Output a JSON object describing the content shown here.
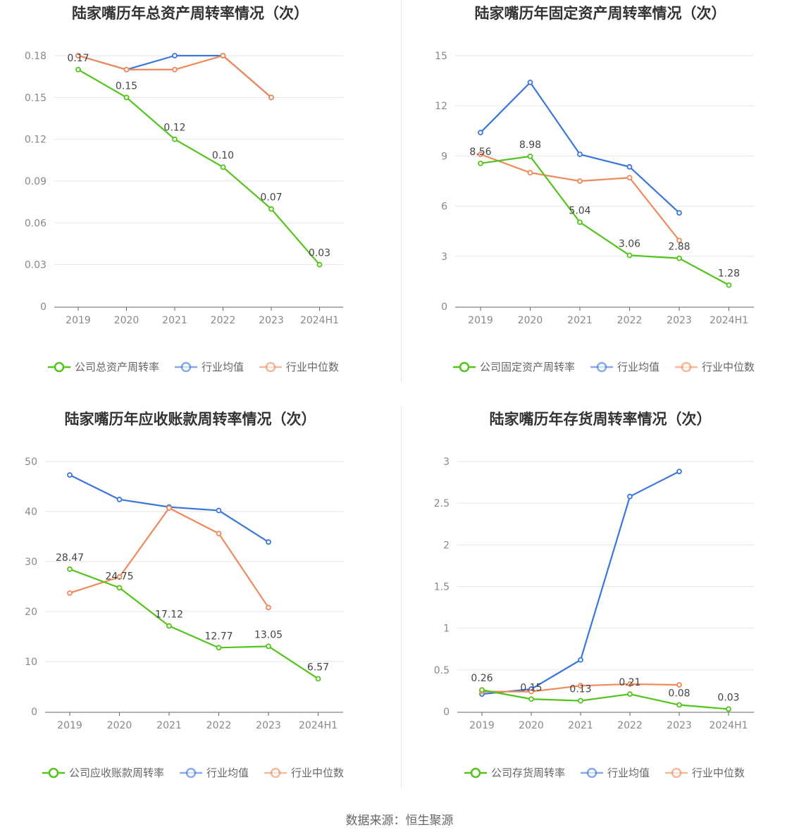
{
  "source_text": "数据来源：恒生聚源",
  "colors": {
    "company": "#52c41a",
    "avg": "#3a76db",
    "median": "#f0895a"
  },
  "chart_data": [
    {
      "type": "line",
      "title": "陆家嘴历年总资产周转率情况（次）",
      "categories": [
        "2019",
        "2020",
        "2021",
        "2022",
        "2023",
        "2024H1"
      ],
      "yticks": [
        "0",
        "0.03",
        "0.06",
        "0.09",
        "0.12",
        "0.15",
        "0.18"
      ],
      "ylim": [
        0,
        0.18
      ],
      "series": [
        {
          "name": "公司总资产周转率",
          "role": "company",
          "values": [
            0.17,
            0.15,
            0.12,
            0.1,
            0.07,
            0.03
          ],
          "labels": [
            "0.17",
            "0.15",
            "0.12",
            "0.10",
            "0.07",
            "0.03"
          ]
        },
        {
          "name": "行业均值",
          "role": "avg",
          "values": [
            0.18,
            0.17,
            0.18,
            0.18,
            0.15,
            null
          ]
        },
        {
          "name": "行业中位数",
          "role": "median",
          "values": [
            0.18,
            0.17,
            0.17,
            0.18,
            0.15,
            null
          ]
        }
      ]
    },
    {
      "type": "line",
      "title": "陆家嘴历年固定资产周转率情况（次）",
      "categories": [
        "2019",
        "2020",
        "2021",
        "2022",
        "2023",
        "2024H1"
      ],
      "yticks": [
        "0",
        "3",
        "6",
        "9",
        "12",
        "15"
      ],
      "ylim": [
        0,
        15
      ],
      "series": [
        {
          "name": "公司固定资产周转率",
          "role": "company",
          "values": [
            8.56,
            8.98,
            5.04,
            3.06,
            2.88,
            1.28
          ],
          "labels": [
            "8.56",
            "8.98",
            "5.04",
            "3.06",
            "2.88",
            "1.28"
          ]
        },
        {
          "name": "行业均值",
          "role": "avg",
          "values": [
            10.4,
            13.4,
            9.1,
            8.35,
            5.6,
            null
          ]
        },
        {
          "name": "行业中位数",
          "role": "median",
          "values": [
            9.1,
            8.0,
            7.5,
            7.7,
            3.95,
            null
          ]
        }
      ]
    },
    {
      "type": "line",
      "title": "陆家嘴历年应收账款周转率情况（次）",
      "categories": [
        "2019",
        "2020",
        "2021",
        "2022",
        "2023",
        "2024H1"
      ],
      "yticks": [
        "0",
        "10",
        "20",
        "30",
        "40",
        "50"
      ],
      "ylim": [
        0,
        50
      ],
      "series": [
        {
          "name": "公司应收账款周转率",
          "role": "company",
          "values": [
            28.47,
            24.75,
            17.12,
            12.77,
            13.05,
            6.57
          ],
          "labels": [
            "28.47",
            "24.75",
            "17.12",
            "12.77",
            "13.05",
            "6.57"
          ]
        },
        {
          "name": "行业均值",
          "role": "avg",
          "values": [
            47.3,
            42.4,
            40.9,
            40.2,
            33.9,
            null
          ]
        },
        {
          "name": "行业中位数",
          "role": "median",
          "values": [
            23.7,
            26.9,
            40.7,
            35.6,
            20.8,
            null
          ]
        }
      ]
    },
    {
      "type": "line",
      "title": "陆家嘴历年存货周转率情况（次）",
      "categories": [
        "2019",
        "2020",
        "2021",
        "2022",
        "2023",
        "2024H1"
      ],
      "yticks": [
        "0",
        "0.5",
        "1",
        "1.5",
        "2",
        "2.5",
        "3"
      ],
      "ylim": [
        0,
        3
      ],
      "series": [
        {
          "name": "公司存货周转率",
          "role": "company",
          "values": [
            0.26,
            0.15,
            0.13,
            0.21,
            0.08,
            0.03
          ],
          "labels": [
            "0.26",
            "0.15",
            "0.13",
            "0.21",
            "0.08",
            "0.03"
          ]
        },
        {
          "name": "行业均值",
          "role": "avg",
          "values": [
            0.21,
            0.27,
            0.62,
            2.58,
            2.88,
            null
          ]
        },
        {
          "name": "行业中位数",
          "role": "median",
          "values": [
            0.24,
            0.24,
            0.31,
            0.33,
            0.32,
            null
          ]
        }
      ]
    }
  ]
}
